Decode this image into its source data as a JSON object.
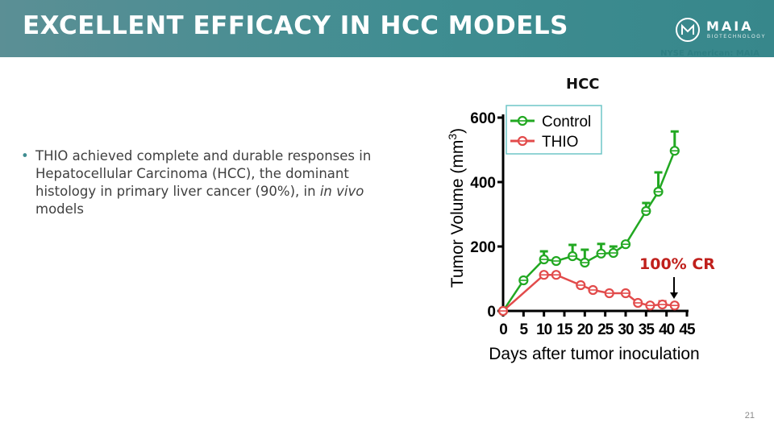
{
  "header": {
    "title": "EXCELLENT EFFICACY IN HCC MODELS",
    "brand": "MAIA",
    "brand_sub": "BIOTECHNOLOGY",
    "ticker": "NYSE American: MAIA",
    "color": "#3f8d91"
  },
  "bullet": {
    "before": "THIO achieved complete and durable responses in Hepatocellular Carcinoma (HCC), the dominant histology in primary liver cancer (90%), in ",
    "italic": "in vivo",
    "after": " models"
  },
  "annotation": {
    "label": "100% CR",
    "color": "#c0201c"
  },
  "page_number": "21",
  "chart_data": {
    "type": "line",
    "title": "HCC",
    "xlabel": "Days after tumor inoculation",
    "ylabel": "Tumor Volume (mm",
    "ylabel_sup": "3",
    "ylabel_end": ")",
    "xlim": [
      0,
      45
    ],
    "ylim": [
      0,
      600
    ],
    "x_ticks": [
      0,
      5,
      10,
      15,
      20,
      25,
      30,
      35,
      40,
      45
    ],
    "y_ticks": [
      0,
      200,
      400,
      600
    ],
    "legend_position": "top-left",
    "series": [
      {
        "name": "Control",
        "color": "#22a822",
        "x": [
          0,
          5,
          10,
          13,
          17,
          20,
          24,
          27,
          30,
          35,
          38,
          42
        ],
        "y": [
          0,
          95,
          160,
          155,
          170,
          150,
          178,
          180,
          207,
          310,
          370,
          497
        ],
        "err": [
          0,
          0,
          25,
          0,
          35,
          40,
          30,
          20,
          0,
          25,
          60,
          60
        ]
      },
      {
        "name": "THIO",
        "color": "#e24b4b",
        "x": [
          0,
          10,
          13,
          19,
          22,
          26,
          30,
          33,
          36,
          39,
          42
        ],
        "y": [
          0,
          112,
          112,
          80,
          65,
          55,
          55,
          25,
          17,
          20,
          17
        ],
        "err": [
          0,
          0,
          0,
          0,
          0,
          0,
          0,
          0,
          0,
          10,
          0
        ]
      }
    ]
  }
}
